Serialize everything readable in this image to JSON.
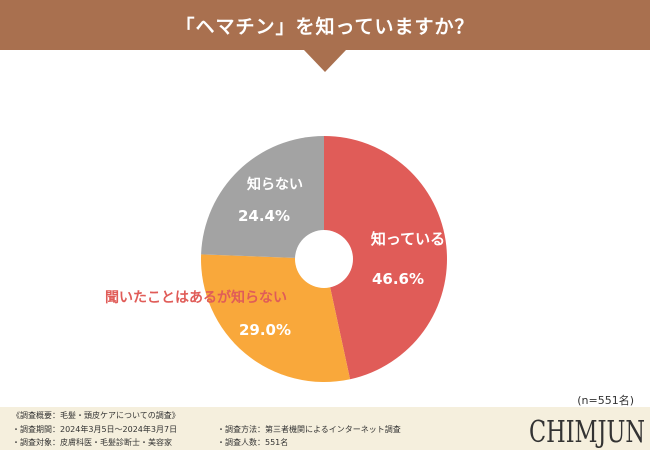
{
  "header": {
    "title": "「ヘマチン」を知っていますか？"
  },
  "chart_data": {
    "type": "pie",
    "donut": true,
    "slices": [
      {
        "label": "知っている",
        "value": 46.6,
        "display": "46.6%",
        "color": "#e05c58",
        "label_color": "#ffffff"
      },
      {
        "label": "聞いたことはあるが知らない",
        "value": 29.0,
        "display": "29.0%",
        "color": "#f9a83b",
        "label_color": "#e05c58"
      },
      {
        "label": "知らない",
        "value": 24.4,
        "display": "24.4%",
        "color": "#a3a3a3",
        "label_color": "#ffffff"
      }
    ]
  },
  "sample_size": "(n=551名)",
  "footer": {
    "overview": "《調査概要：毛髪・頭皮ケアについての調査》",
    "period": "・調査期間：2024年3月5日〜2024年3月7日",
    "target": "・調査対象：皮膚科医・毛髪診断士・美容家",
    "method": "・調査方法：第三者機関によるインターネット調査",
    "count": "・調査人数：551名"
  },
  "logo_text": "CHIMJUN"
}
